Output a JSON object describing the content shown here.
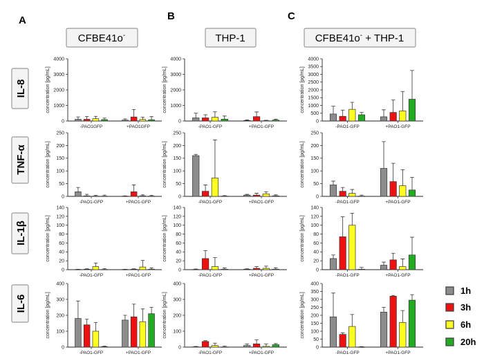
{
  "panel_letters": [
    "A",
    "B",
    "C"
  ],
  "columns": [
    {
      "label": "CFBE41o",
      "sup": "-"
    },
    {
      "label": "THP-1",
      "sup": ""
    },
    {
      "label": "CFBE41o",
      "sup": "-",
      "suffix": " + THP-1"
    }
  ],
  "rows": [
    "IL-8",
    "TNF-α",
    "IL-1β",
    "IL-6"
  ],
  "legend": [
    {
      "label": "1h",
      "color": "#8c8c8c"
    },
    {
      "label": "3h",
      "color": "#ee1111"
    },
    {
      "label": "6h",
      "color": "#ffff22"
    },
    {
      "label": "20h",
      "color": "#22aa22"
    }
  ],
  "chart_data": [
    {
      "type": "bar",
      "row": "IL-8",
      "column": "CFBE41o-",
      "ylabel": "concentration [pg/mL]",
      "ylim": [
        0,
        4000
      ],
      "yticks": [
        0,
        1000,
        2000,
        3000,
        4000
      ],
      "categories": [
        "-PAO1GFP",
        "+PAO1GFP"
      ],
      "series": [
        {
          "name": "1h",
          "values": [
            110,
            60
          ],
          "errors": [
            150,
            80
          ]
        },
        {
          "name": "3h",
          "values": [
            110,
            260
          ],
          "errors": [
            180,
            480
          ]
        },
        {
          "name": "6h",
          "values": [
            150,
            100
          ],
          "errors": [
            150,
            150
          ]
        },
        {
          "name": "20h",
          "values": [
            90,
            80
          ],
          "errors": [
            100,
            200
          ]
        }
      ]
    },
    {
      "type": "bar",
      "row": "IL-8",
      "column": "THP-1",
      "ylabel": "concentration [pg/mL]",
      "ylim": [
        0,
        4000
      ],
      "yticks": [
        0,
        1000,
        2000,
        3000,
        4000
      ],
      "categories": [
        "-PAO1-GFP",
        "+PAO1-GFP"
      ],
      "series": [
        {
          "name": "1h",
          "values": [
            200,
            30
          ],
          "errors": [
            300,
            40
          ]
        },
        {
          "name": "3h",
          "values": [
            200,
            280
          ],
          "errors": [
            200,
            300
          ]
        },
        {
          "name": "6h",
          "values": [
            240,
            20
          ],
          "errors": [
            350,
            30
          ]
        },
        {
          "name": "20h",
          "values": [
            120,
            60
          ],
          "errors": [
            200,
            60
          ]
        }
      ]
    },
    {
      "type": "bar",
      "row": "IL-8",
      "column": "CFBE41o- + THP-1",
      "ylabel": "concentration [pg/mL]",
      "ylim": [
        0,
        4000
      ],
      "yticks": [
        0,
        500,
        1000,
        1500,
        2000,
        2500,
        3000,
        3500,
        4000
      ],
      "categories": [
        "-PAO1-GFP",
        "+PAO1-GFP"
      ],
      "series": [
        {
          "name": "1h",
          "values": [
            450,
            270
          ],
          "errors": [
            500,
            450
          ]
        },
        {
          "name": "3h",
          "values": [
            300,
            550
          ],
          "errors": [
            400,
            800
          ]
        },
        {
          "name": "6h",
          "values": [
            750,
            650
          ],
          "errors": [
            450,
            1250
          ]
        },
        {
          "name": "20h",
          "values": [
            400,
            1400
          ],
          "errors": [
            150,
            1850
          ]
        }
      ]
    },
    {
      "type": "bar",
      "row": "TNF-α",
      "column": "CFBE41o-",
      "ylabel": "concentration [pg/mL]",
      "ylim": [
        0,
        250
      ],
      "yticks": [
        0,
        50,
        100,
        150,
        200,
        250
      ],
      "categories": [
        "-PAO1-GFP",
        "+PAO1-GFP"
      ],
      "series": [
        {
          "name": "1h",
          "values": [
            18,
            1
          ],
          "errors": [
            17,
            1
          ]
        },
        {
          "name": "3h",
          "values": [
            2,
            18
          ],
          "errors": [
            6,
            27
          ]
        },
        {
          "name": "6h",
          "values": [
            1,
            2
          ],
          "errors": [
            3,
            4
          ]
        },
        {
          "name": "20h",
          "values": [
            1,
            1
          ],
          "errors": [
            4,
            3
          ]
        }
      ]
    },
    {
      "type": "bar",
      "row": "TNF-α",
      "column": "THP-1",
      "ylabel": "concentration [pg/mL]",
      "ylim": [
        0,
        250
      ],
      "yticks": [
        0,
        50,
        100,
        150,
        200,
        250
      ],
      "categories": [
        "-PAO1-GFP",
        "+PAO1-GFP"
      ],
      "series": [
        {
          "name": "1h",
          "values": [
            160,
            5
          ],
          "errors": [
            5,
            3
          ]
        },
        {
          "name": "3h",
          "values": [
            20,
            5
          ],
          "errors": [
            25,
            7
          ]
        },
        {
          "name": "6h",
          "values": [
            72,
            10
          ],
          "errors": [
            150,
            8
          ]
        },
        {
          "name": "20h",
          "values": [
            1,
            2
          ],
          "errors": [
            2,
            4
          ]
        }
      ]
    },
    {
      "type": "bar",
      "row": "TNF-α",
      "column": "CFBE41o- + THP-1",
      "ylabel": "concentration [pg/mL]",
      "ylim": [
        0,
        250
      ],
      "yticks": [
        0,
        50,
        100,
        150,
        200,
        250
      ],
      "categories": [
        "-PAO1-GFP",
        "+PAO1-GFP"
      ],
      "series": [
        {
          "name": "1h",
          "values": [
            45,
            110
          ],
          "errors": [
            15,
            105
          ]
        },
        {
          "name": "3h",
          "values": [
            20,
            58
          ],
          "errors": [
            15,
            72
          ]
        },
        {
          "name": "6h",
          "values": [
            12,
            42
          ],
          "errors": [
            15,
            63
          ]
        },
        {
          "name": "20h",
          "values": [
            1,
            25
          ],
          "errors": [
            4,
            50
          ]
        }
      ]
    },
    {
      "type": "bar",
      "row": "IL-1β",
      "column": "CFBE41o-",
      "ylabel": "concentration [pg/mL]",
      "ylim": [
        0,
        140
      ],
      "yticks": [
        0,
        20,
        40,
        60,
        80,
        100,
        120,
        140
      ],
      "categories": [
        "-PAO1-GFP",
        "+PAO1-GFP"
      ],
      "series": [
        {
          "name": "1h",
          "values": [
            0.5,
            0.5
          ],
          "errors": [
            0.5,
            0.5
          ]
        },
        {
          "name": "3h",
          "values": [
            1,
            1
          ],
          "errors": [
            1,
            1
          ]
        },
        {
          "name": "6h",
          "values": [
            7,
            6
          ],
          "errors": [
            8,
            15
          ]
        },
        {
          "name": "20h",
          "values": [
            0.5,
            1
          ],
          "errors": [
            2,
            3
          ]
        }
      ]
    },
    {
      "type": "bar",
      "row": "IL-1β",
      "column": "THP-1",
      "ylabel": "concentration [pg/mL]",
      "ylim": [
        0,
        140
      ],
      "yticks": [
        0,
        20,
        40,
        60,
        80,
        100,
        120,
        140
      ],
      "categories": [
        "-PAO1-GFP",
        "+PAO1-GFP"
      ],
      "series": [
        {
          "name": "1h",
          "values": [
            0.5,
            1
          ],
          "errors": [
            1,
            1
          ]
        },
        {
          "name": "3h",
          "values": [
            25,
            3
          ],
          "errors": [
            18,
            4
          ]
        },
        {
          "name": "6h",
          "values": [
            7,
            3
          ],
          "errors": [
            20,
            5
          ]
        },
        {
          "name": "20h",
          "values": [
            1,
            1
          ],
          "errors": [
            3,
            3
          ]
        }
      ]
    },
    {
      "type": "bar",
      "row": "IL-1β",
      "column": "CFBE41o- + THP-1",
      "ylabel": "concentration [pg/mL]",
      "ylim": [
        0,
        140
      ],
      "yticks": [
        0,
        20,
        40,
        60,
        80,
        100,
        120,
        140
      ],
      "categories": [
        "-PAO1-GFP",
        "+PAO1-GFP"
      ],
      "series": [
        {
          "name": "1h",
          "values": [
            25,
            10
          ],
          "errors": [
            8,
            7
          ]
        },
        {
          "name": "3h",
          "values": [
            74,
            22
          ],
          "errors": [
            45,
            15
          ]
        },
        {
          "name": "6h",
          "values": [
            100,
            7
          ],
          "errors": [
            27,
            17
          ]
        },
        {
          "name": "20h",
          "values": [
            1,
            33
          ],
          "errors": [
            4,
            40
          ]
        }
      ]
    },
    {
      "type": "bar",
      "row": "IL-6",
      "column": "CFBE41o-",
      "ylabel": "concentration [pg/mL]",
      "ylim": [
        0,
        400
      ],
      "yticks": [
        0,
        100,
        200,
        300,
        400
      ],
      "categories": [
        "-PAO1-GFP",
        "+PAO1-GFP"
      ],
      "series": [
        {
          "name": "1h",
          "values": [
            180,
            170
          ],
          "errors": [
            110,
            30
          ]
        },
        {
          "name": "3h",
          "values": [
            140,
            190
          ],
          "errors": [
            35,
            80
          ]
        },
        {
          "name": "6h",
          "values": [
            100,
            160
          ],
          "errors": [
            55,
            80
          ]
        },
        {
          "name": "20h",
          "values": [
            3,
            210
          ],
          "errors": [
            3,
            40
          ]
        }
      ]
    },
    {
      "type": "bar",
      "row": "IL-6",
      "column": "THP-1",
      "ylabel": "concentration [pg/mL]",
      "ylim": [
        0,
        400
      ],
      "yticks": [
        0,
        100,
        200,
        300,
        400
      ],
      "categories": [
        "-PAO1-GFP",
        "+PAO1-GFP"
      ],
      "series": [
        {
          "name": "1h",
          "values": [
            2,
            10
          ],
          "errors": [
            2,
            10
          ]
        },
        {
          "name": "3h",
          "values": [
            35,
            20
          ],
          "errors": [
            5,
            25
          ]
        },
        {
          "name": "6h",
          "values": [
            10,
            5
          ],
          "errors": [
            15,
            15
          ]
        },
        {
          "name": "20h",
          "values": [
            1,
            15
          ],
          "errors": [
            5,
            7
          ]
        }
      ]
    },
    {
      "type": "bar",
      "row": "IL-6",
      "column": "CFBE41o- + THP-1",
      "ylabel": "concentration [pg/mL]",
      "ylim": [
        0,
        400
      ],
      "yticks": [
        0,
        50,
        100,
        150,
        200,
        250,
        300,
        350,
        400
      ],
      "categories": [
        "-PAO1-GFP",
        "+PAO1-GFP"
      ],
      "series": [
        {
          "name": "1h",
          "values": [
            190,
            220
          ],
          "errors": [
            150,
            30
          ]
        },
        {
          "name": "3h",
          "values": [
            80,
            320
          ],
          "errors": [
            10,
            5
          ]
        },
        {
          "name": "6h",
          "values": [
            130,
            155
          ],
          "errors": [
            75,
            75
          ]
        },
        {
          "name": "20h",
          "values": [
            1,
            295
          ],
          "errors": [
            2,
            35
          ]
        }
      ]
    }
  ]
}
